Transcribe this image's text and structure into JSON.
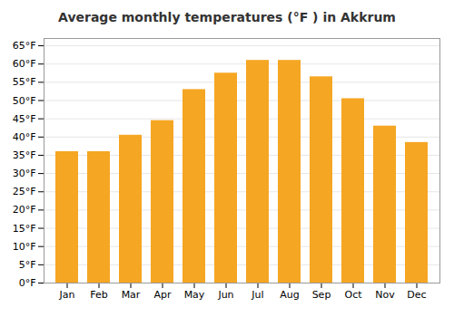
{
  "chart_data": {
    "type": "bar",
    "title": "Average monthly temperatures (°F ) in Akkrum",
    "categories": [
      "Jan",
      "Feb",
      "Mar",
      "Apr",
      "May",
      "Jun",
      "Jul",
      "Aug",
      "Sep",
      "Oct",
      "Nov",
      "Dec"
    ],
    "values": [
      36,
      36,
      40.5,
      44.5,
      53,
      57.5,
      61,
      61,
      56.5,
      50.5,
      43,
      38.5
    ],
    "color": "#F5A623",
    "ylim": [
      0,
      67
    ],
    "yticks": [
      {
        "value": 0,
        "label": "0°F"
      },
      {
        "value": 5,
        "label": "5°F"
      },
      {
        "value": 10,
        "label": "10°F"
      },
      {
        "value": 15,
        "label": "15°F"
      },
      {
        "value": 20,
        "label": "20°F"
      },
      {
        "value": 25,
        "label": "25°F"
      },
      {
        "value": 30,
        "label": "30°F"
      },
      {
        "value": 35,
        "label": "35°F"
      },
      {
        "value": 40,
        "label": "40°F"
      },
      {
        "value": 45,
        "label": "45°F"
      },
      {
        "value": 50,
        "label": "50°F"
      },
      {
        "value": 55,
        "label": "55°F"
      },
      {
        "value": 60,
        "label": "60°F"
      },
      {
        "value": 65,
        "label": "65°F"
      }
    ],
    "grid": true
  }
}
